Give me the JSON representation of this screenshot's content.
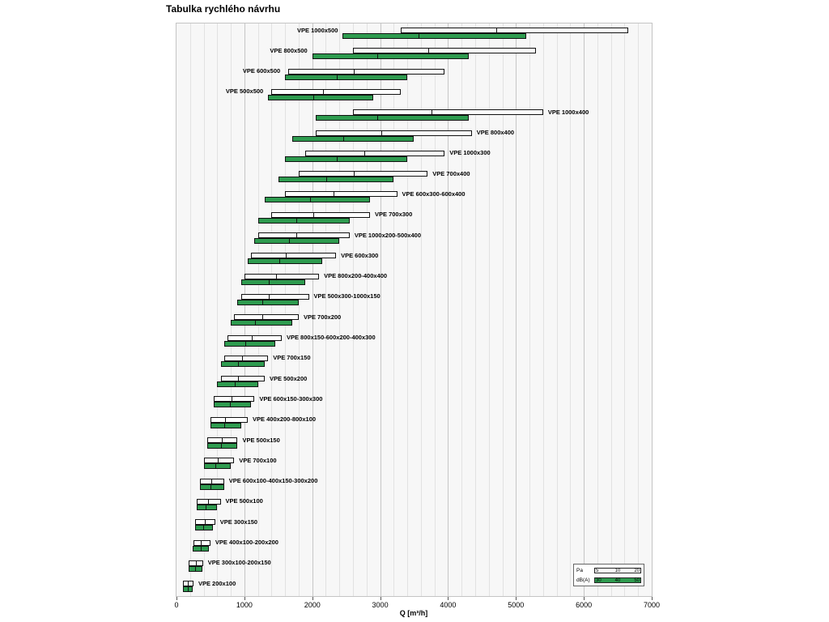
{
  "title": "Tabulka rychlého návrhu",
  "axis": {
    "xlabel": "Q [m³/h]",
    "ticks": [
      "0",
      "1000",
      "2000",
      "3000",
      "4000",
      "5000",
      "6000",
      "7000"
    ]
  },
  "legend": {
    "pa_label": "Pa",
    "pa_ticks": [
      "5",
      "10",
      "20"
    ],
    "db_label": "dB(A)",
    "db_ticks": [
      "30",
      "40",
      "50"
    ]
  },
  "colors": {
    "bar_green": "#2e9b4f",
    "bar_white": "#ffffff",
    "bar_border": "#111111"
  },
  "chart_data": {
    "type": "bar",
    "orientation": "horizontal",
    "title": "Tabulka rychlého návrhu",
    "xlabel": "Q [m³/h]",
    "x_axis": {
      "min": 0,
      "max": 7000,
      "major_step": 1000,
      "minor_step": 200
    },
    "series_legend": [
      {
        "name": "Pa",
        "color": "white",
        "ticks": [
          5,
          10,
          20
        ]
      },
      {
        "name": "dB(A)",
        "color": "green",
        "ticks": [
          30,
          40,
          50
        ]
      }
    ],
    "rows": [
      {
        "label": "VPE 1000x500",
        "label_side": "left",
        "pa": [
          3300,
          4700,
          6650
        ],
        "db": [
          2450,
          3550,
          5150
        ]
      },
      {
        "label": "VPE 800x500",
        "label_side": "left",
        "pa": [
          2600,
          3700,
          5300
        ],
        "db": [
          2000,
          2950,
          4300
        ]
      },
      {
        "label": "VPE 600x500",
        "label_side": "left",
        "pa": [
          1650,
          2600,
          3950
        ],
        "db": [
          1600,
          2350,
          3400
        ]
      },
      {
        "label": "VPE 500x500",
        "label_side": "left",
        "pa": [
          1400,
          2150,
          3300
        ],
        "db": [
          1350,
          2000,
          2900
        ]
      },
      {
        "label": "VPE 1000x400",
        "label_side": "right",
        "pa": [
          2600,
          3750,
          5400
        ],
        "db": [
          2050,
          2950,
          4300
        ]
      },
      {
        "label": "VPE 800x400",
        "label_side": "right",
        "pa": [
          2050,
          3000,
          4350
        ],
        "db": [
          1700,
          2450,
          3500
        ]
      },
      {
        "label": "VPE 1000x300",
        "label_side": "right",
        "pa": [
          1900,
          2750,
          3950
        ],
        "db": [
          1600,
          2350,
          3400
        ]
      },
      {
        "label": "VPE 700x400",
        "label_side": "right",
        "pa": [
          1800,
          2600,
          3700
        ],
        "db": [
          1500,
          2200,
          3200
        ]
      },
      {
        "label": "VPE 600x300-600x400",
        "label_side": "right",
        "pa": [
          1600,
          2300,
          3250
        ],
        "db": [
          1300,
          1950,
          2850
        ]
      },
      {
        "label": "VPE 700x300",
        "label_side": "right",
        "pa": [
          1400,
          2000,
          2850
        ],
        "db": [
          1200,
          1750,
          2550
        ]
      },
      {
        "label": "VPE 1000x200-500x400",
        "label_side": "right",
        "pa": [
          1200,
          1750,
          2550
        ],
        "db": [
          1150,
          1650,
          2400
        ]
      },
      {
        "label": "VPE 600x300",
        "label_side": "right",
        "pa": [
          1100,
          1600,
          2350
        ],
        "db": [
          1050,
          1500,
          2150
        ]
      },
      {
        "label": "VPE 800x200-400x400",
        "label_side": "right",
        "pa": [
          1000,
          1450,
          2100
        ],
        "db": [
          950,
          1350,
          1900
        ]
      },
      {
        "label": "VPE 500x300-1000x150",
        "label_side": "right",
        "pa": [
          950,
          1350,
          1950
        ],
        "db": [
          900,
          1250,
          1800
        ]
      },
      {
        "label": "VPE 700x200",
        "label_side": "right",
        "pa": [
          850,
          1250,
          1800
        ],
        "db": [
          800,
          1150,
          1700
        ]
      },
      {
        "label": "VPE 800x150-600x200-400x300",
        "label_side": "right",
        "pa": [
          750,
          1100,
          1550
        ],
        "db": [
          700,
          1000,
          1450
        ]
      },
      {
        "label": "VPE 700x150",
        "label_side": "right",
        "pa": [
          700,
          950,
          1350
        ],
        "db": [
          650,
          900,
          1300
        ]
      },
      {
        "label": "VPE 500x200",
        "label_side": "right",
        "pa": [
          650,
          900,
          1300
        ],
        "db": [
          600,
          850,
          1200
        ]
      },
      {
        "label": "VPE 600x150-300x300",
        "label_side": "right",
        "pa": [
          550,
          800,
          1150
        ],
        "db": [
          550,
          780,
          1100
        ]
      },
      {
        "label": "VPE 400x200-800x100",
        "label_side": "right",
        "pa": [
          500,
          700,
          1050
        ],
        "db": [
          500,
          690,
          950
        ]
      },
      {
        "label": "VPE 500x150",
        "label_side": "right",
        "pa": [
          450,
          650,
          900
        ],
        "db": [
          450,
          640,
          900
        ]
      },
      {
        "label": "VPE 700x100",
        "label_side": "right",
        "pa": [
          400,
          600,
          850
        ],
        "db": [
          400,
          560,
          800
        ]
      },
      {
        "label": "VPE 600x100-400x150-300x200",
        "label_side": "right",
        "pa": [
          350,
          500,
          700
        ],
        "db": [
          350,
          490,
          700
        ]
      },
      {
        "label": "VPE 500x100",
        "label_side": "right",
        "pa": [
          300,
          450,
          650
        ],
        "db": [
          300,
          420,
          600
        ]
      },
      {
        "label": "VPE 300x150",
        "label_side": "right",
        "pa": [
          280,
          400,
          570
        ],
        "db": [
          270,
          380,
          540
        ]
      },
      {
        "label": "VPE 400x100-200x200",
        "label_side": "right",
        "pa": [
          250,
          350,
          500
        ],
        "db": [
          240,
          340,
          480
        ]
      },
      {
        "label": "VPE 300x100-200x150",
        "label_side": "right",
        "pa": [
          180,
          270,
          390
        ],
        "db": [
          180,
          260,
          380
        ]
      },
      {
        "label": "VPE 200x100",
        "label_side": "right",
        "pa": [
          100,
          160,
          250
        ],
        "db": [
          90,
          150,
          240
        ]
      }
    ]
  }
}
